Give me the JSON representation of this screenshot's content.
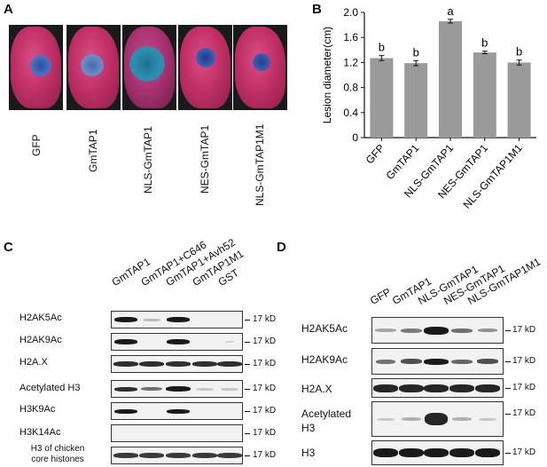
{
  "panels": {
    "a": "A",
    "b": "B",
    "c": "C",
    "d": "D"
  },
  "panel_a": {
    "labels": [
      "GFP",
      "GmTAP1",
      "NLS-GmTAP1",
      "NES-GmTAP1",
      "NLS-GmTAP1M1"
    ]
  },
  "chart_data": {
    "type": "bar",
    "categories": [
      "GFP",
      "GmTAP1",
      "NLS-GmTAP1",
      "NES-GmTAP1",
      "NLS-GmTAP1M1"
    ],
    "values": [
      1.27,
      1.19,
      1.86,
      1.36,
      1.2
    ],
    "errors": [
      0.04,
      0.04,
      0.03,
      0.02,
      0.04
    ],
    "annotations": [
      "b",
      "b",
      "a",
      "b",
      "b"
    ],
    "ylabel": "Lesion diameter(cm)",
    "xlabel": "",
    "ylim": [
      0,
      2.0
    ],
    "yticks": [
      "0",
      "0.4",
      "0.8",
      "1.2",
      "1.6",
      "2.0"
    ],
    "bar_color": "#9a9a9a"
  },
  "panel_c": {
    "lanes": [
      "GmTAP1",
      "GmTAP1+C646",
      "GmTAP1+Avh52",
      "GmTAP1M1",
      "GST"
    ],
    "rows": [
      "H2AK5Ac",
      "H2AK9Ac",
      "H2A.X",
      "Acetylated H3",
      "H3K9Ac",
      "H3K14Ac",
      "H3 of chicken\ncore histones"
    ],
    "kd": "17 kD"
  },
  "panel_d": {
    "lanes": [
      "GFP",
      "GmTAP1",
      "NLS-GmTAP1",
      "NES-GmTAP1",
      "NLS-GmTAP1M1"
    ],
    "rows": [
      "H2AK5Ac",
      "H2AK9Ac",
      "H2A.X",
      "Acetylated\nH3",
      "H3"
    ],
    "kd": "17 kD"
  }
}
